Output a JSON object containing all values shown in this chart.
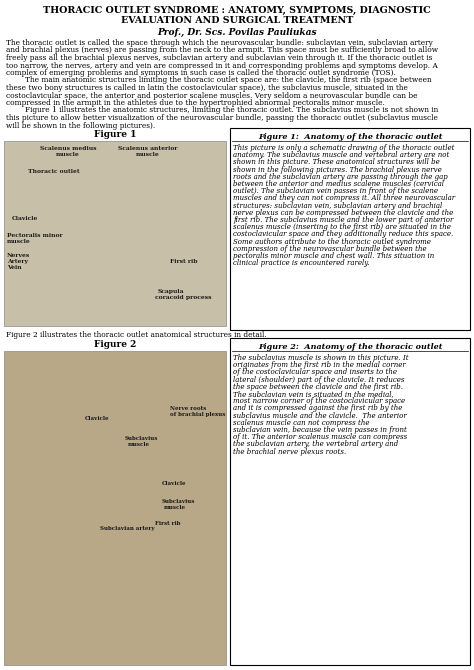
{
  "title_line1": "THORACIC OUTLET SYNDROME : ANATOMY, SYMPTOMS, DIAGNOSTIC",
  "title_line2": "EVALUATION AND SURGICAL TREATMENT",
  "author": "Prof., Dr. Scs. Povilas Pauliukas",
  "body_p1": "The thoracic outlet is called the space through which the neurovascular bundle: subclavian vein, subclavian artery and brachial plexus (nerves) are passing from the neck to the armpit. This space must be sufficiently broad to allow freely pass all the brachial plexus nerves, subclavian artery and subclavian vein through it. If the thoracic outlet is too narrow, the nerves, artery and vein are compressed in it and corresponding problems and symptoms develop. A complex of emerging problems and symptoms in such case is called the thoracic outlet syndrome (TOS).",
  "body_p2": "        The main anatomic structures limiting the thoracic outlet space are: the clavicle, the first rib (space between these two bony structures is called in latin the costoclavicular space), the subclavius muscle, situated in the costoclavicular space, the anterior and posterior scalene muscles. Very seldom a neurovascular bundle can be compressed in the armpit in the athletes due to the hypertrophied abnormal pectoralis minor muscle.",
  "body_p3": "        Figure 1 illustrates the anatomic structures, limiting the thoracic outlet. The subclavius muscle is not shown in this picture to allow better visualization of the neurovascular bundle, passing the thoracic outlet (subclavius muscle will be shown in the following pictures).",
  "fig1_caption": "Figure 1",
  "fig1_box_title": "Figure 1:  Anatomy of the thoracic outlet",
  "fig1_box_text": "This picture is only a schematic drawing of the thoracic outlet anatomy. The subclavius muscle and vertebral artery are not shown in this picture. These anatomical structures will be shown in the following pictures. The brachial plexus nerve roots and the subclavian artery are passing through the gap between the anterior and medius scalene muscles (cervical outlet). The subclavian vein passes in front of the scalene muscles and they can not compress it. All three neurovascular structures: subclavian vein, subclavian artery and brachial nerve plexus can be compressed between the clavicle and the first rib. The subclavius muscle and the lower part of anterior scalenus muscle (inserting to the first rib) are situated in the costoclavicular space and they additionally reduce this space. Some authors attribute to the thoracic outlet syndrome compression of the neurovascular bundle between the pectoralis minor muscle and chest wall. This situation in clinical practice is encountered rarely.",
  "fig2_intro": "Figure 2 illustrates the thoracic outlet anatomical structures in detail.",
  "fig2_caption": "Figure 2",
  "fig2_box_title": "Figure 2:  Anatomy of the thoracic outlet",
  "fig2_box_text": "The subclavius muscle is shown in this picture. It originates from the first rib in the medial corner of the costoclavicular space and inserts to the lateral (shoulder) part of the clavicle. It reduces the space between the clavicle and the first rib. The subclavian vein is situated in the medial, most narrow corner of the costoclavicular space and it is compressed against the first rib by the subclavius muscle and the clavicle.  The anterior scalenus muscle can not compress the subclavian vein, because the vein passes in front of it. The anterior scalenus muscle can compress the subclavian artery, the vertebral artery and the brachial nerve plexus roots.",
  "bg_color": "#ffffff",
  "text_color": "#000000",
  "box_border_color": "#000000",
  "fig1_img_color": "#c8bfa8",
  "fig2_img_color": "#b8a888",
  "fig1_label_color": "#1a1a1a"
}
